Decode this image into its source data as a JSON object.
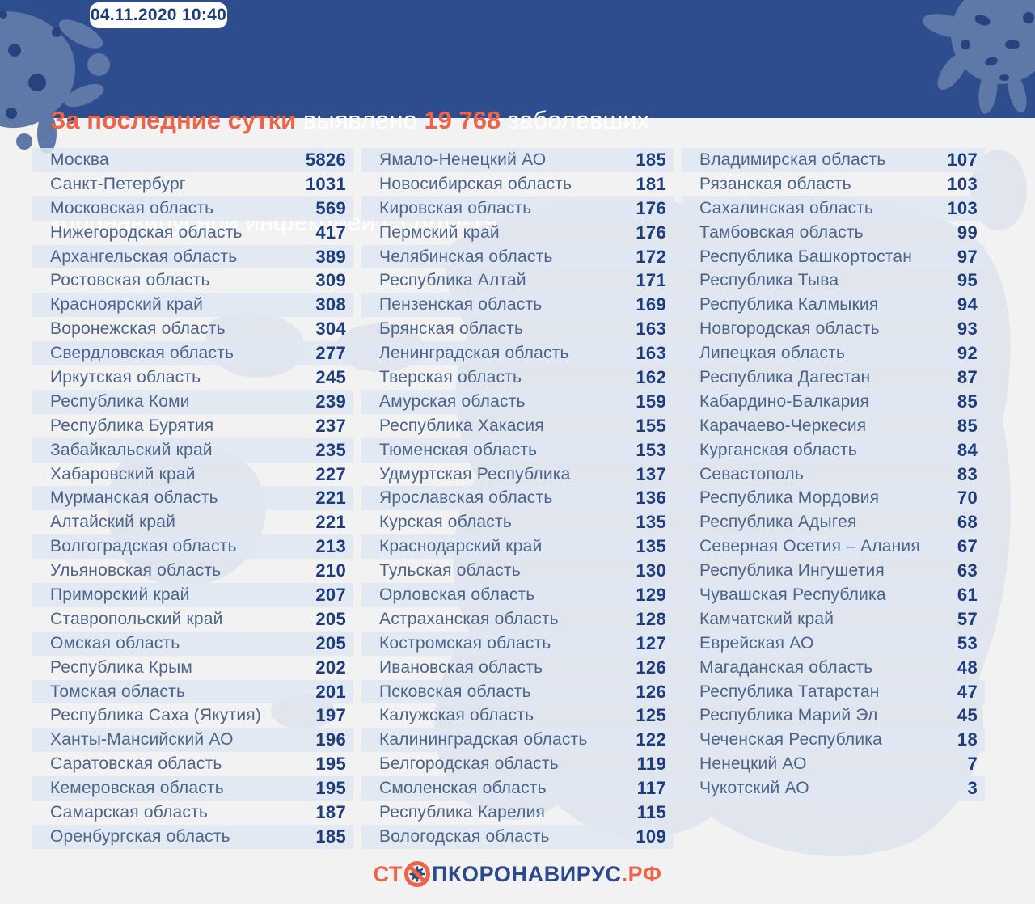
{
  "header": {
    "badge": "04.11.2020 10:40",
    "title": {
      "part1": "За последние сутки",
      "part2": " выявлено ",
      "part3": "19 768",
      "part4": " заболевших",
      "line2": "коронавирусной инфекцией COVID-19"
    }
  },
  "colors": {
    "header_bg": "#2e4d8e",
    "accent_orange": "#ec6449",
    "row_stripe": "#e3e9f2",
    "page_bg": "#f2f2f3",
    "region_name": "#4d6489",
    "region_value": "#1d3d7c",
    "blob_light": "#5e78a8",
    "map_watermark": "#e0e5ee"
  },
  "footer": {
    "logo_prefix": "СТ",
    "logo_icon": "no-virus-icon",
    "logo_mid": "ПКОРОНАВИРУС",
    "logo_suffix": ".РФ"
  },
  "chart_data": {
    "type": "table",
    "title": "За последние сутки выявлено 19 768 заболевших коронавирусной инфекцией COVID-19",
    "timestamp": "04.11.2020 10:40",
    "total_new_cases": 19768,
    "columns": [
      {
        "rows": [
          {
            "region": "Москва",
            "cases": "5826"
          },
          {
            "region": "Санкт-Петербург",
            "cases": "1031"
          },
          {
            "region": "Московская область",
            "cases": "569"
          },
          {
            "region": "Нижегородская область",
            "cases": "417"
          },
          {
            "region": "Архангельская область",
            "cases": "389"
          },
          {
            "region": "Ростовская область",
            "cases": "309"
          },
          {
            "region": "Красноярский край",
            "cases": "308"
          },
          {
            "region": "Воронежская область",
            "cases": "304"
          },
          {
            "region": "Свердловская область",
            "cases": "277"
          },
          {
            "region": "Иркутская область",
            "cases": "245"
          },
          {
            "region": "Республика Коми",
            "cases": "239"
          },
          {
            "region": "Республика Бурятия",
            "cases": "237"
          },
          {
            "region": "Забайкальский край",
            "cases": "235"
          },
          {
            "region": "Хабаровский край",
            "cases": "227"
          },
          {
            "region": "Мурманская область",
            "cases": "221"
          },
          {
            "region": "Алтайский край",
            "cases": "221"
          },
          {
            "region": "Волгоградская область",
            "cases": "213"
          },
          {
            "region": "Ульяновская область",
            "cases": "210"
          },
          {
            "region": "Приморский край",
            "cases": "207"
          },
          {
            "region": "Ставропольский край",
            "cases": "205"
          },
          {
            "region": "Омская область",
            "cases": "205"
          },
          {
            "region": "Республика Крым",
            "cases": "202"
          },
          {
            "region": "Томская область",
            "cases": "201"
          },
          {
            "region": "Республика Саха (Якутия)",
            "cases": "197"
          },
          {
            "region": "Ханты-Мансийский АО",
            "cases": "196"
          },
          {
            "region": "Саратовская область",
            "cases": "195"
          },
          {
            "region": "Кемеровская область",
            "cases": "195"
          },
          {
            "region": "Самарская область",
            "cases": "187"
          },
          {
            "region": "Оренбургская область",
            "cases": "185"
          }
        ]
      },
      {
        "rows": [
          {
            "region": "Ямало-Ненецкий АО",
            "cases": "185"
          },
          {
            "region": "Новосибирская область",
            "cases": "181"
          },
          {
            "region": "Кировская область",
            "cases": "176"
          },
          {
            "region": "Пермский край",
            "cases": "176"
          },
          {
            "region": "Челябинская область",
            "cases": "172"
          },
          {
            "region": "Республика Алтай",
            "cases": "171"
          },
          {
            "region": "Пензенская область",
            "cases": "169"
          },
          {
            "region": "Брянская область",
            "cases": "163"
          },
          {
            "region": "Ленинградская область",
            "cases": "163"
          },
          {
            "region": "Тверская область",
            "cases": "162"
          },
          {
            "region": "Амурская область",
            "cases": "159"
          },
          {
            "region": "Республика Хакасия",
            "cases": "155"
          },
          {
            "region": "Тюменская область",
            "cases": "153"
          },
          {
            "region": "Удмуртская Республика",
            "cases": "137"
          },
          {
            "region": "Ярославская область",
            "cases": "136"
          },
          {
            "region": "Курская область",
            "cases": "135"
          },
          {
            "region": "Краснодарский край",
            "cases": "135"
          },
          {
            "region": "Тульская область",
            "cases": "130"
          },
          {
            "region": "Орловская область",
            "cases": "129"
          },
          {
            "region": "Астраханская область",
            "cases": "128"
          },
          {
            "region": "Костромская область",
            "cases": "127"
          },
          {
            "region": "Ивановская область",
            "cases": "126"
          },
          {
            "region": "Псковская область",
            "cases": "126"
          },
          {
            "region": "Калужская область",
            "cases": "125"
          },
          {
            "region": "Калининградская область",
            "cases": "122"
          },
          {
            "region": "Белгородская область",
            "cases": "119"
          },
          {
            "region": "Смоленская область",
            "cases": "117"
          },
          {
            "region": "Республика Карелия",
            "cases": "115"
          },
          {
            "region": "Вологодская область",
            "cases": "109"
          }
        ]
      },
      {
        "rows": [
          {
            "region": "Владимирская область",
            "cases": "107"
          },
          {
            "region": "Рязанская область",
            "cases": "103"
          },
          {
            "region": "Сахалинская область",
            "cases": "103"
          },
          {
            "region": "Тамбовская область",
            "cases": "99"
          },
          {
            "region": "Республика Башкортостан",
            "cases": "97"
          },
          {
            "region": "Республика Тыва",
            "cases": "95"
          },
          {
            "region": "Республика Калмыкия",
            "cases": "94"
          },
          {
            "region": "Новгородская область",
            "cases": "93"
          },
          {
            "region": "Липецкая область",
            "cases": "92"
          },
          {
            "region": "Республика Дагестан",
            "cases": "87"
          },
          {
            "region": "Кабардино-Балкария",
            "cases": "85"
          },
          {
            "region": "Карачаево-Черкесия",
            "cases": "85"
          },
          {
            "region": "Курганская область",
            "cases": "84"
          },
          {
            "region": "Севастополь",
            "cases": "83"
          },
          {
            "region": "Республика Мордовия",
            "cases": "70"
          },
          {
            "region": "Республика Адыгея",
            "cases": "68"
          },
          {
            "region": "Северная Осетия – Алания",
            "cases": "67"
          },
          {
            "region": "Республика Ингушетия",
            "cases": "63"
          },
          {
            "region": "Чувашская Республика",
            "cases": "61"
          },
          {
            "region": "Камчатский край",
            "cases": "57"
          },
          {
            "region": "Еврейская АО",
            "cases": "53"
          },
          {
            "region": "Магаданская область",
            "cases": "48"
          },
          {
            "region": "Республика Татарстан",
            "cases": "47"
          },
          {
            "region": "Республика Марий Эл",
            "cases": "45"
          },
          {
            "region": "Чеченская Республика",
            "cases": "18"
          },
          {
            "region": "Ненецкий АО",
            "cases": "7"
          },
          {
            "region": "Чукотский АО",
            "cases": "3"
          }
        ]
      }
    ]
  }
}
